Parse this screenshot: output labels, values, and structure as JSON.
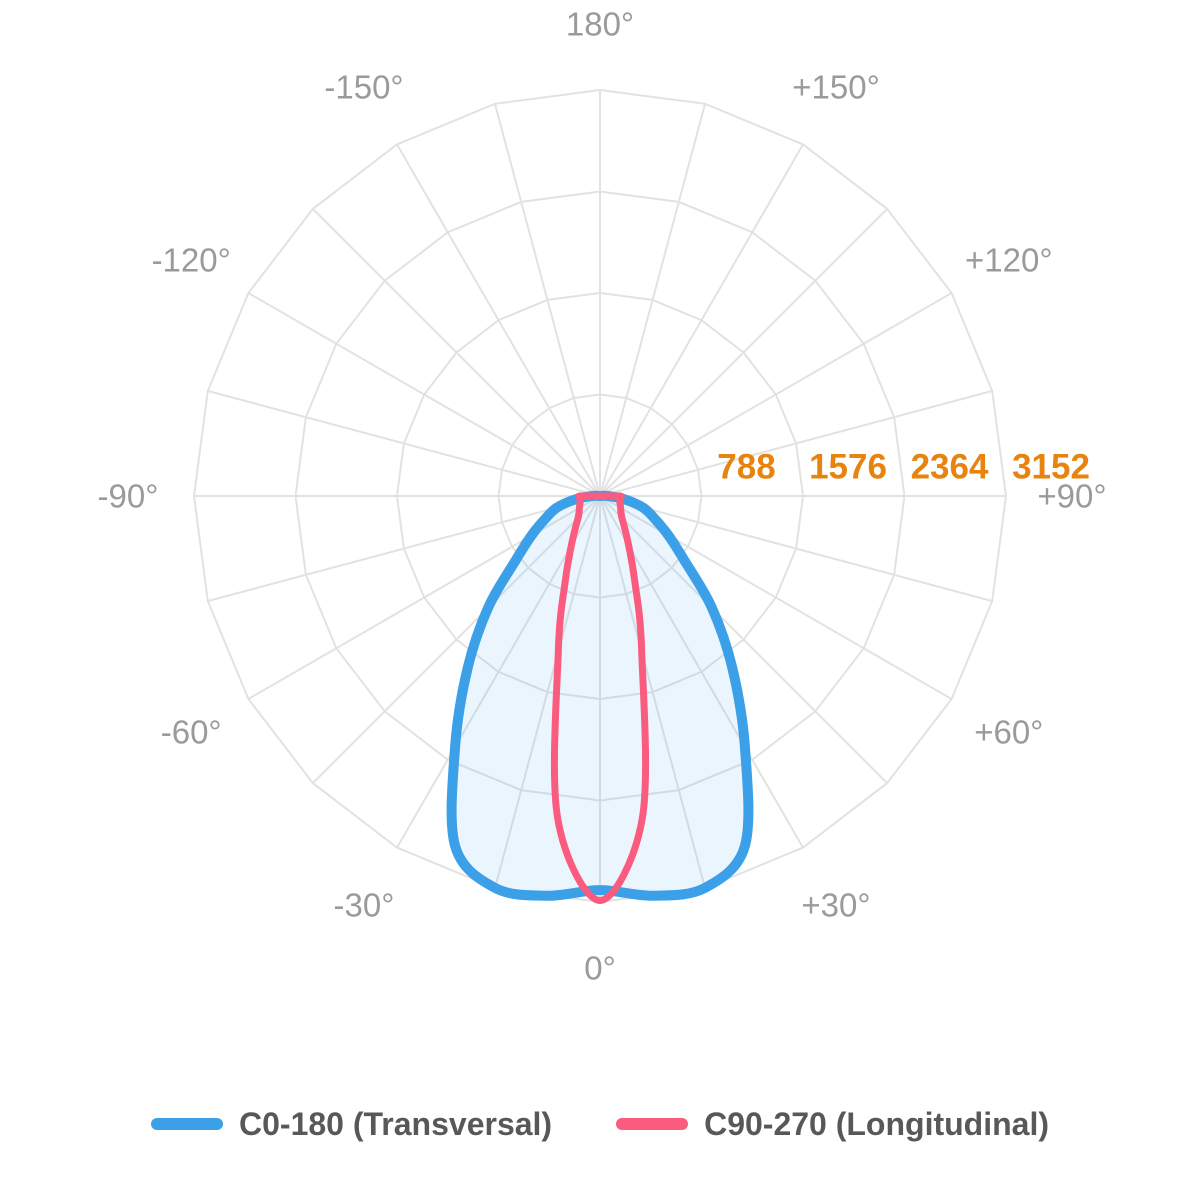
{
  "chart_data": {
    "type": "line",
    "subtype": "polar-photometric-distribution",
    "title": "",
    "angle_unit": "degrees",
    "zero_angle_position": "bottom",
    "spoke_step_deg": 15,
    "radial_max": 3152,
    "radial_ticks": [
      "788",
      "1576",
      "2364",
      "3152"
    ],
    "radial_tick_values": [
      788,
      1576,
      2364,
      3152
    ],
    "angle_labels": [
      {
        "angle": 180,
        "label": "180°"
      },
      {
        "angle": -150,
        "label": "-150°"
      },
      {
        "angle": -120,
        "label": "-120°"
      },
      {
        "angle": -90,
        "label": "-90°"
      },
      {
        "angle": -60,
        "label": "-60°"
      },
      {
        "angle": -30,
        "label": "-30°"
      },
      {
        "angle": 0,
        "label": "0°"
      },
      {
        "angle": 30,
        "label": "+30°"
      },
      {
        "angle": 60,
        "label": "+60°"
      },
      {
        "angle": 90,
        "label": "+90°"
      },
      {
        "angle": 120,
        "label": "+120°"
      },
      {
        "angle": 150,
        "label": "+150°"
      }
    ],
    "series": [
      {
        "name": "C0-180 (Transversal)",
        "color": "#3CA0E9",
        "fill": "rgba(60,160,233,0.10)",
        "angles_deg": [
          -97.5,
          -90,
          -82.5,
          -75,
          -67.5,
          -60,
          -52.5,
          -45,
          -37.5,
          -30,
          -22.5,
          -15,
          -7.5,
          0,
          7.5,
          15,
          22.5,
          30,
          37.5,
          45,
          52.5,
          60,
          67.5,
          75,
          82.5,
          90,
          97.5
        ],
        "values": [
          0,
          60,
          190,
          345,
          460,
          615,
          830,
          1230,
          1690,
          2250,
          2940,
          3150,
          3130,
          3060,
          3130,
          3150,
          2940,
          2250,
          1690,
          1230,
          830,
          615,
          460,
          345,
          190,
          60,
          0
        ]
      },
      {
        "name": "C90-270 (Longitudinal)",
        "color": "#FA5C80",
        "fill": "none",
        "angles_deg": [
          -97.5,
          -90,
          -82.5,
          -75,
          -67.5,
          -60,
          -52.5,
          -45,
          -37.5,
          -30,
          -22.5,
          -15,
          -7.5,
          0,
          7.5,
          15,
          22.5,
          30,
          37.5,
          45,
          52.5,
          60,
          67.5,
          75,
          82.5,
          90,
          97.5
        ],
        "values": [
          0,
          155,
          152,
          158,
          170,
          185,
          205,
          240,
          315,
          445,
          700,
          1250,
          2520,
          3140,
          2520,
          1250,
          700,
          445,
          315,
          240,
          205,
          185,
          170,
          158,
          152,
          155,
          0
        ]
      }
    ],
    "grid": {
      "rings": 4,
      "shape": "polygon-24-gon",
      "visible": true
    },
    "colors": {
      "grid": "#E2E2E2",
      "angle_label": "#9A9A9A",
      "tick_label": "#E8830E",
      "legend_text": "#58585A",
      "background": "#FFFFFF"
    }
  },
  "legend": {
    "items": [
      {
        "label": "C0-180 (Transversal)",
        "color": "#3CA0E9"
      },
      {
        "label": "C90-270 (Longitudinal)",
        "color": "#FA5C80"
      }
    ]
  }
}
